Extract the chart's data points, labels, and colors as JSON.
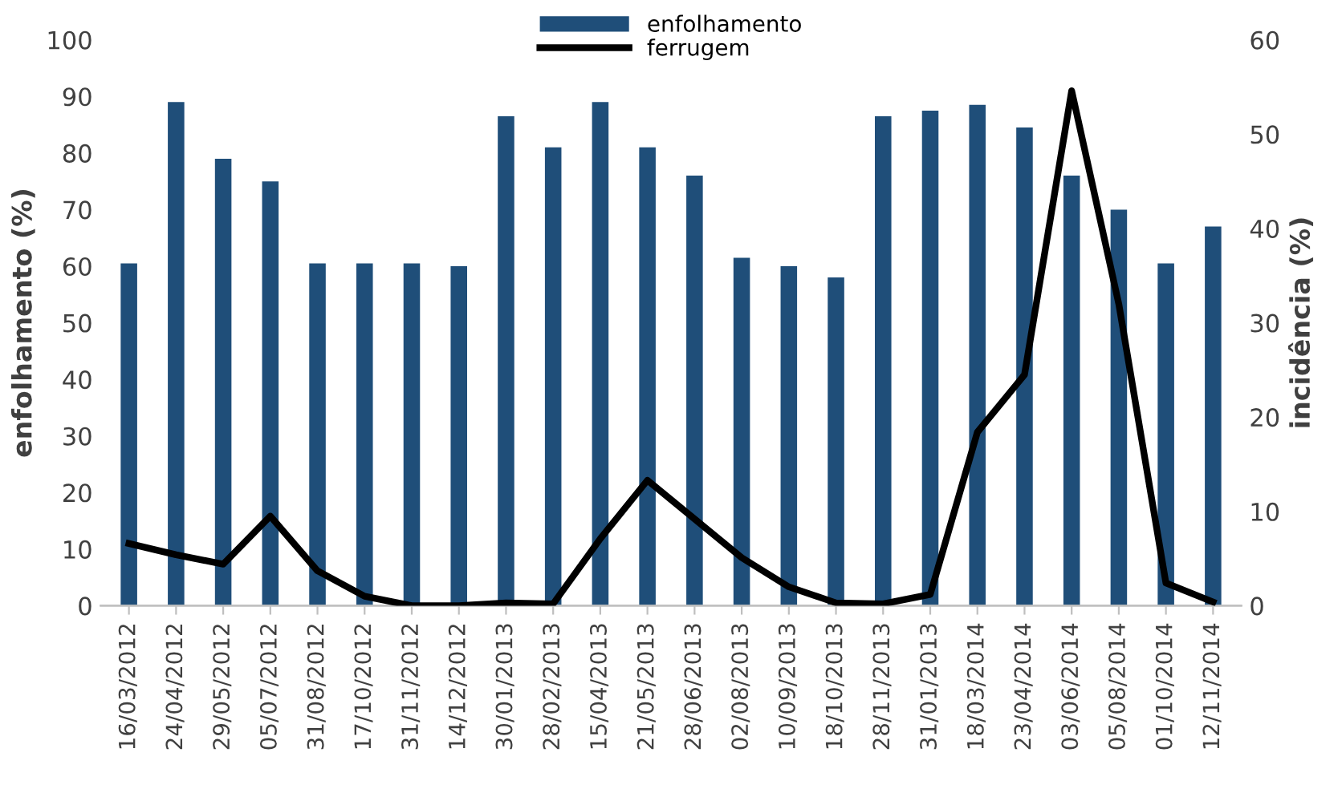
{
  "chart_data": {
    "type": "bar",
    "categories": [
      "16/03/2012",
      "24/04/2012",
      "29/05/2012",
      "05/07/2012",
      "31/08/2012",
      "17/10/2012",
      "31/11/2012",
      "14/12/2012",
      "30/01/2013",
      "28/02/2013",
      "15/04/2013",
      "21/05/2013",
      "28/06/2013",
      "02/08/2013",
      "10/09/2013",
      "18/10/2013",
      "28/11/2013",
      "31/01/2013",
      "18/03/2014",
      "23/04/2014",
      "03/06/2014",
      "05/08/2014",
      "01/10/2014",
      "12/11/2014"
    ],
    "series": [
      {
        "name": "enfolhamento",
        "color": "#1f4e79",
        "values": [
          60.5,
          89,
          79,
          75,
          60.5,
          60.5,
          60.5,
          60,
          86.5,
          81,
          89,
          81,
          76,
          61.5,
          60,
          58,
          86.5,
          87.5,
          88.5,
          84.5,
          76,
          70,
          60.5,
          67
        ]
      },
      {
        "name": "ferrugem",
        "type": "line",
        "axis": "y2",
        "color": "#000000",
        "values": [
          6.6,
          5.4,
          4.4,
          9.5,
          3.7,
          1.0,
          0,
          0,
          0.3,
          0.2,
          7.1,
          13.3,
          9.2,
          5.1,
          2.0,
          0.3,
          0.2,
          1.2,
          18.4,
          24.5,
          54.6,
          32,
          2.4,
          0.4
        ]
      }
    ],
    "ylabel": "enfolhamento (%)",
    "y2label": "incidência (%)",
    "ylim": [
      0,
      100
    ],
    "yticks": [
      0,
      10,
      20,
      30,
      40,
      50,
      60,
      70,
      80,
      90,
      100
    ],
    "y2lim": [
      0,
      60
    ],
    "y2ticks": [
      0,
      10,
      20,
      30,
      40,
      50,
      60
    ],
    "grid": false,
    "legend": "top",
    "marker": "none",
    "line_style": "solid"
  }
}
